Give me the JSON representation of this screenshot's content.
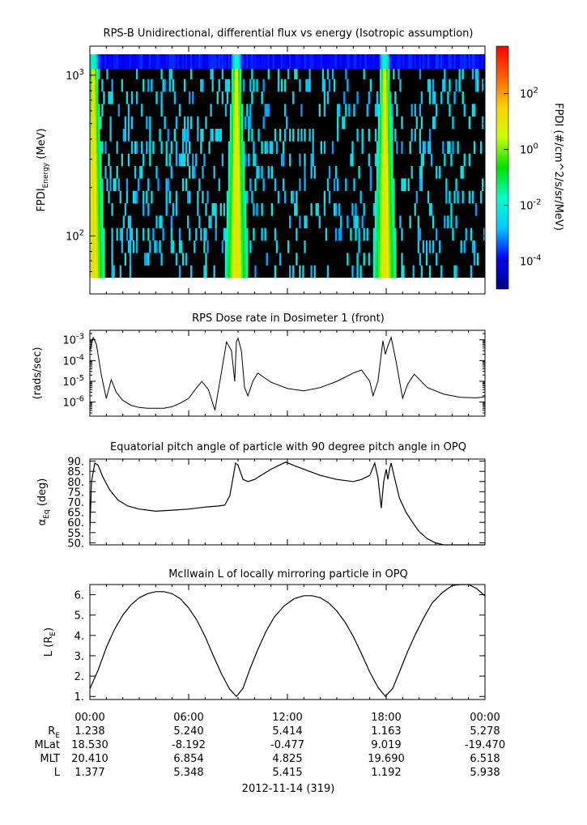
{
  "chart_data": [
    {
      "type": "heatmap",
      "title": "RPS-B  Unidirectional, differential flux vs energy (Isotropic assumption)",
      "ylabel": "FPDI",
      "ylabel_sub": "Energy",
      "ylabel_unit": "(MeV)",
      "yscale": "log",
      "ylim": [
        55,
        1350
      ],
      "ytick_labels": [
        {
          "value": 1000,
          "base": "10",
          "exp": "3"
        },
        {
          "value": 100,
          "base": "10",
          "exp": "2"
        }
      ],
      "colorbar": {
        "label": "FPDI (#/cm^2/s/sr/MeV)",
        "scale": "log",
        "range": [
          1e-05,
          5000
        ],
        "colormap": [
          "#000080",
          "#0000ff",
          "#00c8ff",
          "#00ffc8",
          "#00e000",
          "#c8ff00",
          "#ffd000",
          "#ff6000",
          "#ff0000"
        ],
        "ticks": [
          {
            "value": 100,
            "base": "10",
            "exp": "2"
          },
          {
            "value": 1,
            "base": "10",
            "exp": "0"
          },
          {
            "value": 0.01,
            "base": "10",
            "exp": "-2"
          },
          {
            "value": 0.0001,
            "base": "10",
            "exp": "-4"
          }
        ]
      },
      "flux_peaks_hours": [
        0.2,
        8.9,
        17.9
      ],
      "background_color": "#000000"
    },
    {
      "type": "line",
      "title": "RPS  Dose rate in Dosimeter 1 (front)",
      "ylabel": "(rads/sec)",
      "yscale": "log",
      "ylim": [
        3e-07,
        0.002
      ],
      "ytick_labels": [
        {
          "value": 0.001,
          "base": "10",
          "exp": "-3"
        },
        {
          "value": 0.0001,
          "base": "10",
          "exp": "-4"
        },
        {
          "value": 1e-05,
          "base": "10",
          "exp": "-5"
        },
        {
          "value": 1e-06,
          "base": "10",
          "exp": "-6"
        }
      ],
      "x": [
        0,
        0.2,
        0.4,
        0.7,
        1.0,
        1.3,
        1.6,
        2,
        2.5,
        3,
        3.5,
        4,
        4.5,
        5,
        5.5,
        6,
        6.4,
        6.8,
        7.2,
        7.6,
        8.0,
        8.3,
        8.6,
        8.8,
        8.9,
        9.0,
        9.2,
        9.4,
        9.6,
        9.9,
        10.2,
        10.6,
        11,
        12,
        13,
        14,
        15,
        16,
        16.5,
        17,
        17.2,
        17.5,
        17.8,
        17.95,
        18.1,
        18.3,
        18.6,
        19.0,
        19.3,
        19.7,
        20.5,
        21.5,
        22.5,
        23.5,
        24
      ],
      "values": [
        0.0003,
        0.0013,
        0.0006,
        2e-05,
        1.5e-06,
        1.2e-05,
        3e-06,
        1.2e-06,
        7e-07,
        5.5e-07,
        5e-07,
        5e-07,
        5e-07,
        6e-07,
        9e-07,
        1.5e-06,
        4e-06,
        1e-05,
        4e-06,
        4e-07,
        3e-05,
        0.0008,
        0.0003,
        1e-05,
        0.0008,
        0.0012,
        0.0003,
        5e-06,
        2e-06,
        1e-05,
        2.5e-05,
        1.5e-05,
        9e-06,
        4.5e-06,
        3.5e-06,
        5e-06,
        1e-05,
        2.5e-05,
        3.5e-05,
        1e-05,
        2e-06,
        1e-05,
        0.0009,
        0.0002,
        0.0005,
        0.0013,
        9e-05,
        1.5e-06,
        7e-06,
        2.2e-05,
        5e-06,
        2.4e-06,
        1.7e-06,
        1.6e-06,
        1.8e-06
      ]
    },
    {
      "type": "line",
      "title": "Equatorial pitch angle of particle with 90 degree pitch angle in OPQ",
      "ylabel": "α",
      "ylabel_sub": "Eq",
      "ylabel_unit": "(deg)",
      "ylim": [
        49,
        91
      ],
      "yticks": [
        90,
        85,
        80,
        75,
        70,
        65,
        60,
        55,
        50
      ],
      "ytick_labels": [
        "90.",
        "85.",
        "80.",
        "75.",
        "70.",
        "65.",
        "60.",
        "55.",
        "50."
      ],
      "x": [
        0,
        0.1,
        0.3,
        0.5,
        0.8,
        1.2,
        1.7,
        2.3,
        3.0,
        4.0,
        5.0,
        6.0,
        7.0,
        7.8,
        8.2,
        8.5,
        8.7,
        8.85,
        9.0,
        9.3,
        9.6,
        10,
        10.5,
        11,
        11.5,
        11.9,
        12.5,
        13,
        14,
        15,
        16,
        16.5,
        17.0,
        17.3,
        17.5,
        17.7,
        17.85,
        18.0,
        18.1,
        18.2,
        18.3,
        18.5,
        18.8,
        19.2,
        19.6,
        20.0,
        20.5,
        21.0,
        21.5,
        24
      ],
      "values": [
        56,
        80,
        89,
        88,
        82,
        76,
        71,
        68,
        66.5,
        65.5,
        66,
        66.5,
        67.5,
        68,
        68.5,
        73,
        82,
        89,
        88,
        81,
        80,
        81,
        83.5,
        86,
        88,
        89.5,
        87.5,
        86,
        83,
        81,
        80,
        81,
        83,
        89,
        82,
        67,
        80,
        86,
        81,
        86,
        89,
        82,
        72,
        65,
        60,
        55.5,
        52,
        50,
        49,
        49
      ]
    },
    {
      "type": "line",
      "title": "McIlwain L of locally mirroring particle in OPQ",
      "ylabel": "L",
      "ylabel_unit": "(R",
      "ylabel_sub": "E",
      "ylabel_close": ")",
      "ylim": [
        0.85,
        6.5
      ],
      "yticks": [
        6,
        5,
        4,
        3,
        2,
        1
      ],
      "ytick_labels": [
        "6.",
        "5.",
        "4.",
        "3.",
        "2.",
        "1."
      ],
      "x": [
        0,
        0.5,
        1,
        1.5,
        2,
        2.5,
        3,
        3.5,
        4,
        4.5,
        5,
        5.5,
        6,
        6.5,
        7,
        7.5,
        8,
        8.5,
        8.9,
        9.3,
        9.7,
        10.2,
        10.7,
        11.2,
        11.8,
        12.4,
        13,
        13.5,
        14,
        14.5,
        15,
        15.5,
        16,
        16.5,
        17,
        17.5,
        17.95,
        18.4,
        18.8,
        19.3,
        19.8,
        20.3,
        20.8,
        21.4,
        22,
        22.5,
        23,
        23.5,
        24
      ],
      "values": [
        1.377,
        2.3,
        3.4,
        4.3,
        5.0,
        5.5,
        5.85,
        6.05,
        6.15,
        6.15,
        6.05,
        5.8,
        5.35,
        4.75,
        3.95,
        3.0,
        2.1,
        1.35,
        1.0,
        1.4,
        2.3,
        3.3,
        4.2,
        4.9,
        5.45,
        5.8,
        5.95,
        5.95,
        5.85,
        5.6,
        5.2,
        4.65,
        3.95,
        3.1,
        2.2,
        1.45,
        1.0,
        1.4,
        2.2,
        3.2,
        4.1,
        4.9,
        5.6,
        6.1,
        6.45,
        6.55,
        6.5,
        6.3,
        5.938
      ]
    }
  ],
  "time_axis": {
    "tick_labels": [
      "00:00",
      "06:00",
      "12:00",
      "18:00",
      "00:00"
    ],
    "tick_hours": [
      0,
      6,
      12,
      18,
      24
    ],
    "range_hours": [
      0,
      24
    ],
    "date_label": "2012-11-14 (319)",
    "ephemeris_rows": [
      {
        "label": "R",
        "sub": "E",
        "values": [
          "1.238",
          "5.240",
          "5.414",
          "1.163",
          "5.278"
        ]
      },
      {
        "label": "MLat",
        "sub": "",
        "values": [
          "18.530",
          "-8.192",
          "-0.477",
          "9.019",
          "-19.470"
        ]
      },
      {
        "label": "MLT",
        "sub": "",
        "values": [
          "20.410",
          "6.854",
          "4.825",
          "19.690",
          "6.518"
        ]
      },
      {
        "label": "L",
        "sub": "",
        "values": [
          "1.377",
          "5.348",
          "5.415",
          "1.192",
          "5.938"
        ]
      }
    ]
  }
}
